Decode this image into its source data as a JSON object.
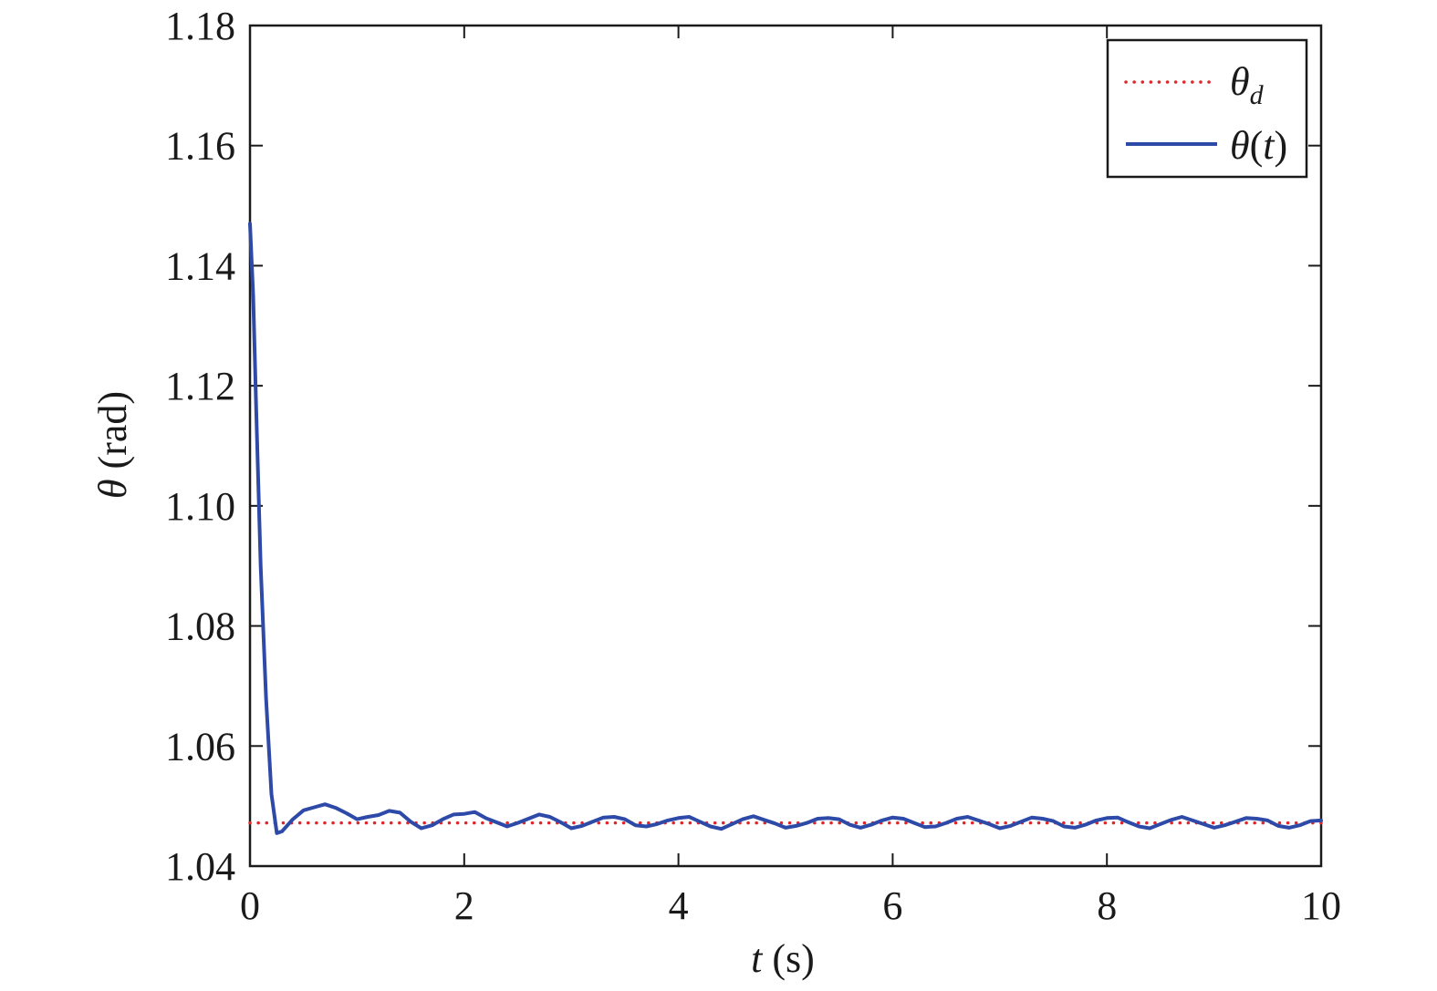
{
  "chart_data": {
    "type": "line",
    "xlabel": {
      "var": "t",
      "unit": " (s)"
    },
    "ylabel": {
      "var": "θ",
      "unit": " (rad)"
    },
    "xlim": [
      0,
      10
    ],
    "ylim": [
      1.04,
      1.18
    ],
    "xticks": [
      0,
      2,
      4,
      6,
      8,
      10
    ],
    "xtick_labels": [
      "0",
      "2",
      "4",
      "6",
      "8",
      "10"
    ],
    "yticks": [
      1.04,
      1.06,
      1.08,
      1.1,
      1.12,
      1.14,
      1.16,
      1.18
    ],
    "ytick_labels": [
      "1.04",
      "1.06",
      "1.08",
      "1.10",
      "1.12",
      "1.14",
      "1.16",
      "1.18"
    ],
    "grid": false,
    "legend_position": "top-right",
    "series": [
      {
        "name": "θ_d",
        "legend_main": "θ",
        "legend_sub": "d",
        "style": "dotted",
        "color": "#e0262b",
        "x": [
          0,
          10
        ],
        "y": [
          1.0472,
          1.0472
        ]
      },
      {
        "name": "θ(t)",
        "legend_main": "θ",
        "legend_paren_open": "(",
        "legend_var": "t",
        "legend_paren_close": ")",
        "style": "solid",
        "color": "#2e4aa8",
        "x": [
          0.0,
          0.03,
          0.06,
          0.1,
          0.15,
          0.2,
          0.25,
          0.3,
          0.4,
          0.5,
          0.6,
          0.7,
          0.8,
          0.9,
          1.0,
          1.1,
          1.2,
          1.3,
          1.4,
          1.5,
          1.6,
          1.7,
          1.8,
          1.9,
          2.0,
          2.1,
          2.2,
          2.3,
          2.4,
          2.5,
          2.6,
          2.7,
          2.8,
          2.9,
          3.0,
          3.1,
          3.2,
          3.3,
          3.4,
          3.5,
          3.6,
          3.7,
          3.8,
          3.9,
          4.0,
          4.1,
          4.2,
          4.3,
          4.4,
          4.5,
          4.6,
          4.7,
          4.8,
          4.9,
          5.0,
          5.1,
          5.2,
          5.3,
          5.4,
          5.5,
          5.6,
          5.7,
          5.8,
          5.9,
          6.0,
          6.1,
          6.2,
          6.3,
          6.4,
          6.5,
          6.6,
          6.7,
          6.8,
          6.9,
          7.0,
          7.1,
          7.2,
          7.3,
          7.4,
          7.5,
          7.6,
          7.7,
          7.8,
          7.9,
          8.0,
          8.1,
          8.2,
          8.3,
          8.4,
          8.5,
          8.6,
          8.7,
          8.8,
          8.9,
          9.0,
          9.1,
          9.2,
          9.3,
          9.4,
          9.5,
          9.6,
          9.7,
          9.8,
          9.9,
          10.0
        ],
        "y": [
          1.147,
          1.135,
          1.115,
          1.09,
          1.068,
          1.052,
          1.0455,
          1.0458,
          1.0478,
          1.0493,
          1.0498,
          1.0503,
          1.0497,
          1.0488,
          1.0478,
          1.0482,
          1.0485,
          1.0492,
          1.0489,
          1.0474,
          1.0463,
          1.0468,
          1.0478,
          1.0486,
          1.0487,
          1.049,
          1.048,
          1.0473,
          1.0466,
          1.0472,
          1.0479,
          1.0486,
          1.0482,
          1.0473,
          1.0463,
          1.0467,
          1.0474,
          1.0481,
          1.0482,
          1.0478,
          1.0468,
          1.0466,
          1.047,
          1.0476,
          1.048,
          1.0482,
          1.0474,
          1.0466,
          1.0462,
          1.047,
          1.0478,
          1.0483,
          1.0477,
          1.0471,
          1.0464,
          1.0467,
          1.0472,
          1.0479,
          1.048,
          1.0478,
          1.0469,
          1.0464,
          1.0469,
          1.0476,
          1.0481,
          1.0479,
          1.0472,
          1.0465,
          1.0466,
          1.0472,
          1.0479,
          1.0482,
          1.0476,
          1.047,
          1.0463,
          1.0467,
          1.0474,
          1.0481,
          1.0479,
          1.0475,
          1.0466,
          1.0464,
          1.0469,
          1.0476,
          1.048,
          1.0481,
          1.0473,
          1.0466,
          1.0463,
          1.047,
          1.0477,
          1.0482,
          1.0476,
          1.047,
          1.0464,
          1.0468,
          1.0474,
          1.048,
          1.0479,
          1.0476,
          1.0467,
          1.0464,
          1.0468,
          1.0475,
          1.0476
        ]
      }
    ]
  },
  "colors": {
    "axis": "#1a1a1a",
    "background": "#ffffff"
  }
}
